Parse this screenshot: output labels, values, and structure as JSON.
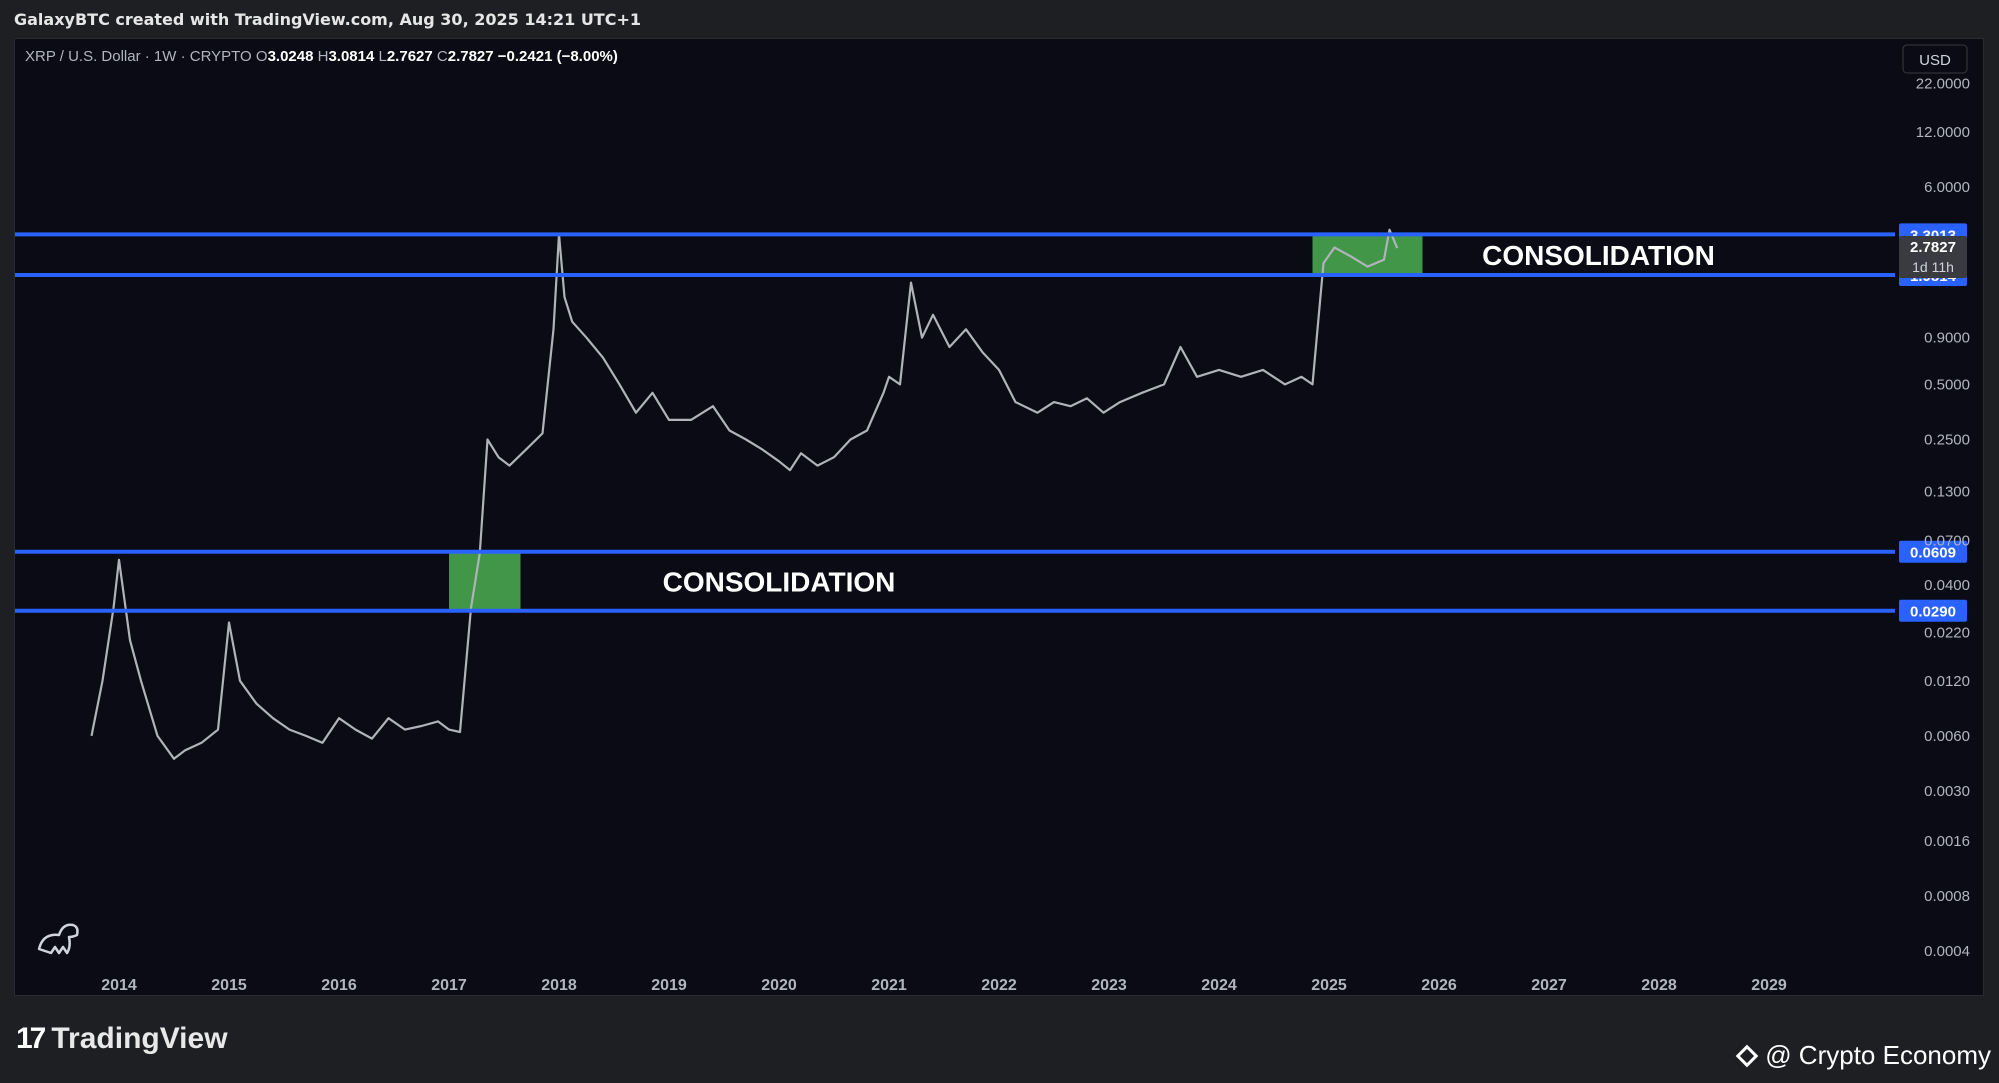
{
  "caption": "GalaxyBTC created with TradingView.com, Aug 30, 2025 14:21 UTC+1",
  "legend": {
    "symbol": "XRP / U.S. Dollar · 1W · CRYPTO",
    "o_label": "O",
    "o": "3.0248",
    "h_label": "H",
    "h": "3.0814",
    "l_label": "L",
    "l": "2.7627",
    "c_label": "C",
    "c": "2.7827",
    "change": "−0.2421 (−8.00%)"
  },
  "currency": "USD",
  "brand": "TradingView",
  "brand_mark": "17",
  "watermark": "@ Crypto Economy",
  "colors": {
    "level_line": "#2962ff",
    "zone": "#4caf50",
    "price": "#b0b3ba",
    "bg": "#0a0b14"
  },
  "chart_data": {
    "type": "line",
    "yscale": "log",
    "ylim": [
      0.0003,
      30
    ],
    "xlim": [
      2013.6,
      2029.6
    ],
    "y_tick_labels": [
      "22.0000",
      "12.0000",
      "6.0000",
      "0.9000",
      "0.5000",
      "0.2500",
      "0.1300",
      "0.0700",
      "0.0400",
      "0.0220",
      "0.0120",
      "0.0060",
      "0.0030",
      "0.0016",
      "0.0008",
      "0.0004"
    ],
    "y_tick_values": [
      22,
      12,
      6,
      0.9,
      0.5,
      0.25,
      0.13,
      0.07,
      0.04,
      0.022,
      0.012,
      0.006,
      0.003,
      0.0016,
      0.0008,
      0.0004
    ],
    "x_tick_labels": [
      "2014",
      "2015",
      "2016",
      "2017",
      "2018",
      "2019",
      "2020",
      "2021",
      "2022",
      "2023",
      "2024",
      "2025",
      "2026",
      "2027",
      "2028",
      "2029"
    ],
    "levels": [
      {
        "value": 3.3013,
        "label": "3.3013"
      },
      {
        "value": 1.9814,
        "label": "1.9814"
      },
      {
        "value": 0.0609,
        "label": "0.0609"
      },
      {
        "value": 0.029,
        "label": "0.0290"
      }
    ],
    "current_price": {
      "value": 2.7827,
      "label": "2.7827",
      "countdown": "1d 11h"
    },
    "zones": [
      {
        "x0": 2017.0,
        "x1": 2017.65,
        "y0": 0.029,
        "y1": 0.0609,
        "label": "CONSOLIDATION",
        "label_x": 2020.0,
        "label_y": 0.042
      },
      {
        "x0": 2024.85,
        "x1": 2025.85,
        "y0": 1.9814,
        "y1": 3.3013,
        "label": "CONSOLIDATION",
        "label_x": 2027.45,
        "label_y": 2.55
      }
    ],
    "series": [
      {
        "x": [
          2013.75,
          2013.85,
          2013.95,
          2014.0,
          2014.1,
          2014.2,
          2014.35,
          2014.5,
          2014.6,
          2014.75,
          2014.9,
          2015.0,
          2015.1,
          2015.25,
          2015.4,
          2015.55,
          2015.7,
          2015.85,
          2016.0,
          2016.15,
          2016.3,
          2016.45,
          2016.6,
          2016.75,
          2016.9,
          2017.0,
          2017.1,
          2017.2,
          2017.28,
          2017.35,
          2017.45,
          2017.55,
          2017.7,
          2017.85,
          2017.95,
          2018.0,
          2018.05,
          2018.12,
          2018.25,
          2018.4,
          2018.55,
          2018.7,
          2018.85,
          2019.0,
          2019.2,
          2019.4,
          2019.55,
          2019.7,
          2019.85,
          2020.0,
          2020.1,
          2020.2,
          2020.35,
          2020.5,
          2020.65,
          2020.8,
          2020.95,
          2021.0,
          2021.1,
          2021.2,
          2021.3,
          2021.4,
          2021.55,
          2021.7,
          2021.85,
          2022.0,
          2022.15,
          2022.35,
          2022.5,
          2022.65,
          2022.8,
          2022.95,
          2023.1,
          2023.3,
          2023.5,
          2023.65,
          2023.8,
          2024.0,
          2024.2,
          2024.4,
          2024.6,
          2024.75,
          2024.85,
          2024.95,
          2025.05,
          2025.2,
          2025.35,
          2025.5,
          2025.55,
          2025.62
        ],
        "values": [
          0.006,
          0.012,
          0.03,
          0.055,
          0.02,
          0.012,
          0.006,
          0.0045,
          0.005,
          0.0055,
          0.0065,
          0.025,
          0.012,
          0.009,
          0.0075,
          0.0065,
          0.006,
          0.0055,
          0.0075,
          0.0065,
          0.0058,
          0.0075,
          0.0065,
          0.0068,
          0.0072,
          0.0065,
          0.0063,
          0.03,
          0.06,
          0.25,
          0.2,
          0.18,
          0.22,
          0.27,
          1.0,
          3.3,
          1.5,
          1.1,
          0.9,
          0.7,
          0.5,
          0.35,
          0.45,
          0.32,
          0.32,
          0.38,
          0.28,
          0.25,
          0.22,
          0.19,
          0.17,
          0.21,
          0.18,
          0.2,
          0.25,
          0.28,
          0.45,
          0.55,
          0.5,
          1.8,
          0.9,
          1.2,
          0.8,
          1.0,
          0.75,
          0.6,
          0.4,
          0.35,
          0.4,
          0.38,
          0.42,
          0.35,
          0.4,
          0.45,
          0.5,
          0.8,
          0.55,
          0.6,
          0.55,
          0.6,
          0.5,
          0.55,
          0.5,
          2.3,
          2.8,
          2.5,
          2.2,
          2.4,
          3.5,
          2.78
        ]
      }
    ]
  }
}
